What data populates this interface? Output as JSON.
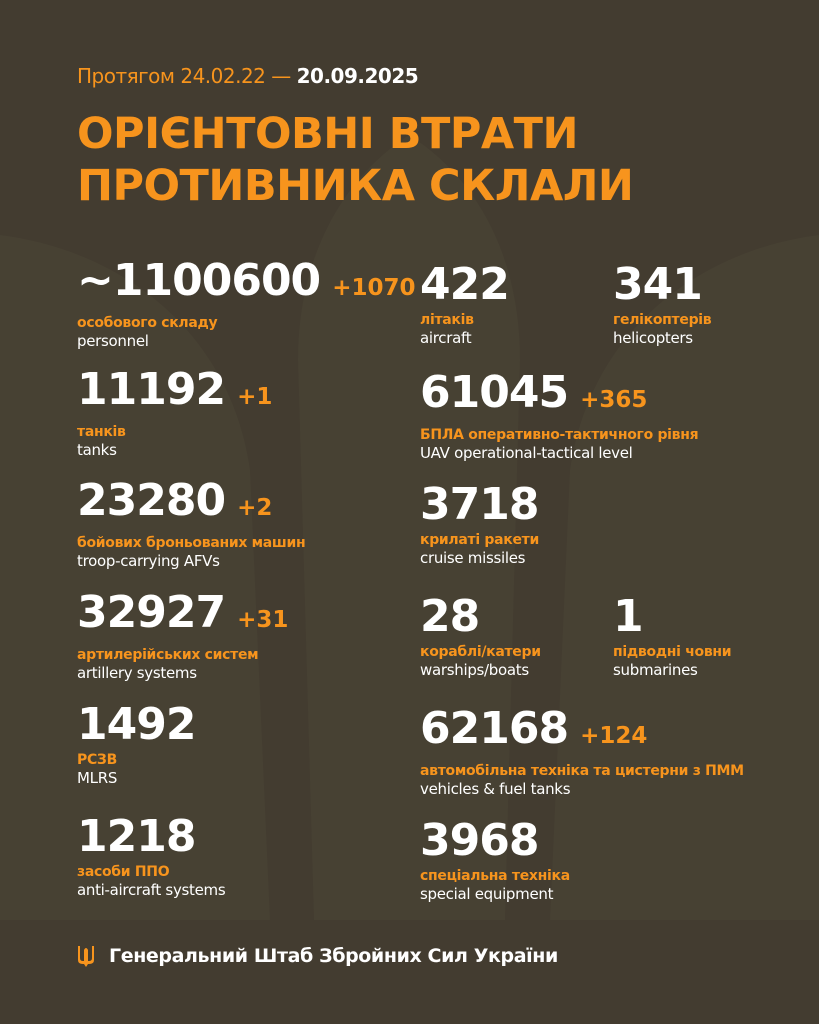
{
  "header": {
    "period_prefix": "Протягом 24.02.22 —",
    "period_end": "20.09.2025",
    "title_line1": "ОРІЄНТОВНІ ВТРАТИ",
    "title_line2": "ПРОТИВНИКА СКЛАЛИ"
  },
  "colors": {
    "background": "#433c30",
    "accent": "#f7941d",
    "text": "#ffffff"
  },
  "stats": [
    {
      "value": "~1100600",
      "delta": "+1070",
      "ua": "особового складу",
      "en": "personnel"
    },
    {
      "value": "11192",
      "delta": "+1",
      "ua": "танків",
      "en": "tanks"
    },
    {
      "value": "23280",
      "delta": "+2",
      "ua": "бойових броньованих машин",
      "en": "troop-carrying AFVs"
    },
    {
      "value": "32927",
      "delta": "+31",
      "ua": "артилерійських систем",
      "en": "artillery systems"
    },
    {
      "value": "1492",
      "delta": "",
      "ua": "РСЗВ",
      "en": "MLRS"
    },
    {
      "value": "1218",
      "delta": "",
      "ua": "засоби ППО",
      "en": "anti-aircraft systems"
    },
    {
      "value": "422",
      "delta": "",
      "ua": "літаків",
      "en": "aircraft"
    },
    {
      "value": "341",
      "delta": "",
      "ua": "гелікоптерів",
      "en": "helicopters"
    },
    {
      "value": "61045",
      "delta": "+365",
      "ua": "БПЛА оперативно-тактичного рівня",
      "en": "UAV operational-tactical level"
    },
    {
      "value": "3718",
      "delta": "",
      "ua": "крилаті ракети",
      "en": "cruise missiles"
    },
    {
      "value": "28",
      "delta": "",
      "ua": "кораблі/катери",
      "en": "warships/boats"
    },
    {
      "value": "1",
      "delta": "",
      "ua": "підводні човни",
      "en": "submarines"
    },
    {
      "value": "62168",
      "delta": "+124",
      "ua": "автомобільна техніка та цистерни з ПММ",
      "en": "vehicles & fuel tanks"
    },
    {
      "value": "3968",
      "delta": "",
      "ua": "спеціальна техніка",
      "en": "special equipment"
    }
  ],
  "footer": {
    "icon": "trident-icon",
    "text": "Генеральний Штаб Збройних Сил України"
  }
}
